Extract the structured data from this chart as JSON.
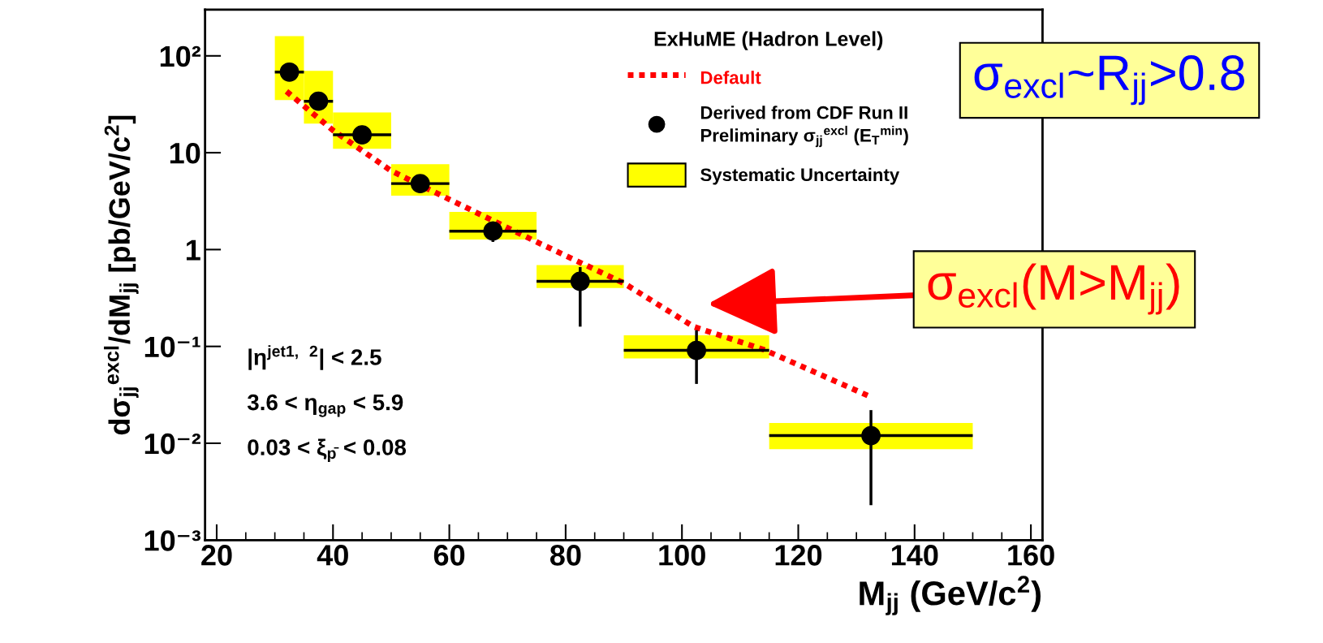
{
  "chart_data": {
    "type": "scatter",
    "xlabel": "M$_{jj}$ (GeV/c$^{2}$)",
    "ylabel": "dσ$_{jj}$$^{excl}$/dM$_{jj}$ [pb/GeV/c$^{2}$]",
    "legend_title": "ExHuME (Hadron Level)",
    "legend": "top right",
    "log": "y",
    "xlim": [
      18,
      162
    ],
    "xticks": [
      20,
      40,
      60,
      80,
      100,
      120,
      140,
      160
    ],
    "ylim": [
      0.001,
      300
    ],
    "yticks": [
      {
        "value": 0.001,
        "label": "10⁻³"
      },
      {
        "value": 0.01,
        "label": "10⁻²"
      },
      {
        "value": 0.1,
        "label": "10⁻¹"
      },
      1,
      10,
      {
        "value": 100,
        "label": "10²"
      }
    ],
    "series": [
      {
        "name": "Default",
        "type": "line",
        "color": "#ff0000",
        "line_style": "dotted",
        "x": [
          32,
          40,
          50,
          60,
          75,
          90,
          102,
          114,
          132
        ],
        "values": [
          43,
          17,
          6.5,
          3.3,
          1.2,
          0.45,
          0.16,
          0.093,
          0.031
        ]
      },
      {
        "name": "Derived from CDF Run II\nPreliminary σ$_{jj}$$^{excl}$ (E$_{T}$$^{min}$)",
        "color": "#000000",
        "marker": "circle",
        "x": [
          32.5,
          37.5,
          45,
          55,
          67.5,
          82.5,
          102.5,
          132.5
        ],
        "values": [
          68,
          34,
          15.3,
          4.8,
          1.55,
          0.47,
          0.091,
          0.012
        ],
        "xerrors": [
          [
            30,
            35
          ],
          [
            35,
            40
          ],
          [
            40,
            50
          ],
          [
            50,
            60
          ],
          [
            60,
            75
          ],
          [
            75,
            90
          ],
          [
            90,
            115
          ],
          [
            115,
            150
          ]
        ],
        "errors": [
          null,
          null,
          null,
          null,
          [
            1.2,
            1.95
          ],
          [
            0.16,
            0.66
          ],
          [
            0.041,
            0.147
          ],
          [
            0.0023,
            0.022
          ]
        ]
      },
      {
        "name": "Systematic Uncertainty",
        "type": "bar",
        "color": "#ffff00",
        "x": [
          32.5,
          37.5,
          45,
          55,
          67.5,
          82.5,
          102.5,
          132.5
        ],
        "base": [
          35,
          20,
          11,
          3.6,
          1.27,
          0.4,
          0.075,
          0.0087
        ],
        "values": [
          125,
          50,
          15,
          4,
          1.18,
          0.29,
          0.055,
          0.0075
        ]
      }
    ],
    "annotations": [
      "|η$^{jet1,}$ $^{2}$| < 2.5",
      "3.6 < η$_{gap}$ < 5.9",
      "0.03 < ξ$_{p̄}$ < 0.08",
      "σ$_{excl}$~R$_{jj}$>0.8",
      "σ$_{excl}$(M>M$_{jj}$)"
    ]
  }
}
